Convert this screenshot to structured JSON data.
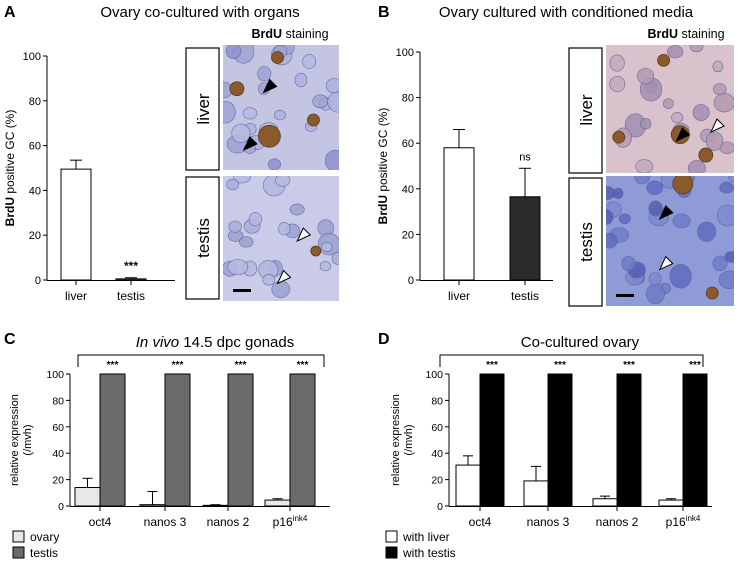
{
  "panels": {
    "A": {
      "letter": "A",
      "title": "Ovary co-cultured with organs",
      "staining_bold": "BrdU",
      "staining_rest": " staining",
      "image_labels": [
        "liver",
        "testis"
      ]
    },
    "B": {
      "letter": "B",
      "title": "Ovary cultured with conditioned media",
      "staining_bold": "BrdU",
      "staining_rest": " staining",
      "image_labels": [
        "liver",
        "testis"
      ]
    },
    "C": {
      "letter": "C",
      "title_italic": "In vivo",
      "title_rest": " 14.5 dpc gonads"
    },
    "D": {
      "letter": "D",
      "title": "Co-cultured ovary"
    }
  },
  "colors": {
    "white_bar": "#ffffff",
    "light_gray_bar": "#e8e8e8",
    "dark_gray_bar": "#6b6b6b",
    "charcoal_bar": "#2b2b2b",
    "black_bar": "#000000",
    "tissue_bg": "#c7c9e6"
  },
  "chart_data": [
    {
      "id": "A",
      "type": "bar",
      "categories": [
        "liver",
        "testis"
      ],
      "values": [
        49.5,
        0.5
      ],
      "errors": [
        4,
        0.5
      ],
      "ylim": [
        0,
        100
      ],
      "yticks": [
        0,
        20,
        40,
        60,
        80,
        100
      ],
      "ylabel_bold": "BrdU",
      "ylabel_rest": " positive GC (%)",
      "annotations": [
        "",
        "***"
      ],
      "bar_colors": [
        "#ffffff",
        "#ffffff"
      ]
    },
    {
      "id": "B",
      "type": "bar",
      "categories": [
        "liver",
        "testis"
      ],
      "values": [
        58,
        36.5
      ],
      "errors": [
        8,
        12.5
      ],
      "ylim": [
        0,
        100
      ],
      "yticks": [
        0,
        20,
        40,
        60,
        80,
        100
      ],
      "ylabel_bold": "BrdU",
      "ylabel_rest": " positive GC (%)",
      "annotations": [
        "",
        "ns"
      ],
      "bar_colors": [
        "#ffffff",
        "#2b2b2b"
      ]
    },
    {
      "id": "C",
      "type": "bar",
      "categories": [
        "oct4",
        "nanos 3",
        "nanos 2",
        "p16"
      ],
      "category_superscripts": [
        "",
        "",
        "",
        "ink4"
      ],
      "ylim": [
        0,
        100
      ],
      "yticks": [
        0,
        20,
        40,
        60,
        80,
        100
      ],
      "ylabel_line1": "relative expression",
      "ylabel_line2": "(/mvh)",
      "series": [
        {
          "name": "ovary",
          "values": [
            14,
            1,
            0.5,
            4.5
          ],
          "errors": [
            7,
            10,
            0.5,
            1
          ],
          "color": "#e8e8e8"
        },
        {
          "name": "testis",
          "values": [
            100,
            100,
            100,
            100
          ],
          "errors": [
            0,
            0,
            0,
            0
          ],
          "color": "#6b6b6b"
        }
      ],
      "annotations": [
        "***",
        "***",
        "***",
        "***"
      ],
      "legend_position": "bottom-left"
    },
    {
      "id": "D",
      "type": "bar",
      "categories": [
        "oct4",
        "nanos 3",
        "nanos 2",
        "p16"
      ],
      "category_superscripts": [
        "",
        "",
        "",
        "ink4"
      ],
      "ylim": [
        0,
        100
      ],
      "yticks": [
        0,
        20,
        40,
        60,
        80,
        100
      ],
      "ylabel_line1": "relative expression",
      "ylabel_line2": "(/mvh)",
      "series": [
        {
          "name": "with liver",
          "values": [
            31,
            19,
            5.5,
            4.5
          ],
          "errors": [
            7,
            11,
            2,
            1
          ],
          "color": "#ffffff"
        },
        {
          "name": "with testis",
          "values": [
            100,
            100,
            100,
            100
          ],
          "errors": [
            0,
            0,
            0,
            0
          ],
          "color": "#000000"
        }
      ],
      "annotations": [
        "***",
        "***",
        "***",
        "***"
      ],
      "legend_position": "bottom-left"
    }
  ]
}
